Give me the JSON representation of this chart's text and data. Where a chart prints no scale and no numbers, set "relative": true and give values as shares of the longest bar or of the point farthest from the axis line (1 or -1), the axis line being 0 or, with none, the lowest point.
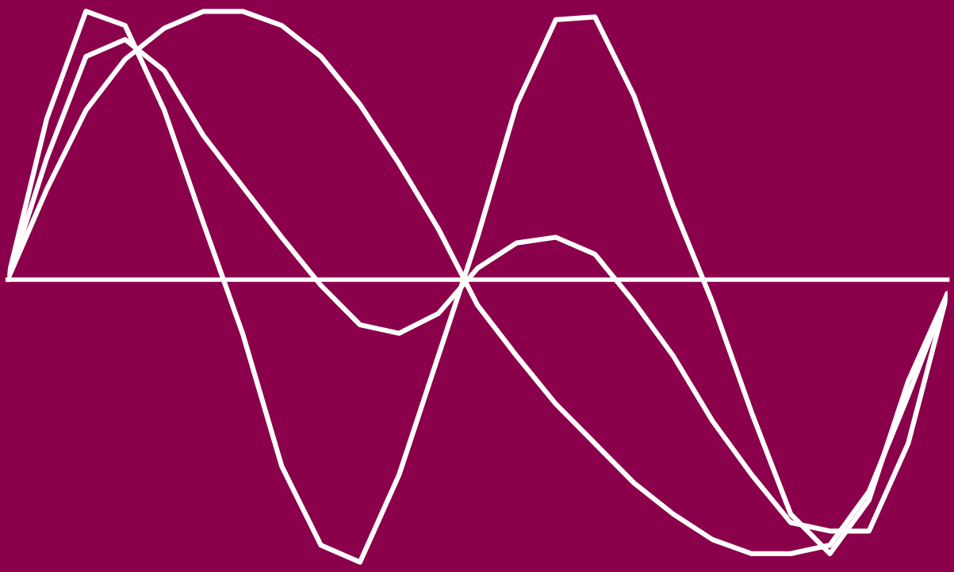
{
  "chart_data": {
    "type": "line",
    "relative": true,
    "grid": false,
    "marker": "none",
    "line_style": "solid",
    "categories": [
      null,
      null,
      null,
      null,
      null,
      null,
      null,
      null,
      null,
      null,
      null,
      null,
      null,
      null,
      null,
      null,
      null,
      null,
      null,
      null,
      null,
      null,
      null,
      null,
      null
    ],
    "series": [
      {
        "color": "#ffffff",
        "values": [
          0,
          0.32,
          0.6,
          0.78,
          0.89,
          0.95,
          0.95,
          0.9,
          0.79,
          0.62,
          0.41,
          0.18,
          -0.09,
          -0.27,
          -0.44,
          -0.58,
          -0.72,
          -0.83,
          -0.92,
          -0.97,
          -0.97,
          -0.94,
          -0.75,
          -0.41,
          -0.05
        ]
      },
      {
        "color": "#ffffff",
        "values": [
          0,
          0.57,
          0.95,
          0.9,
          0.6,
          0.2,
          -0.19,
          -0.66,
          -0.94,
          -1,
          -0.69,
          -0.27,
          0.15,
          0.62,
          0.92,
          0.93,
          0.65,
          0.26,
          -0.08,
          -0.47,
          -0.83,
          -0.97,
          -0.78,
          -0.36,
          -0.05
        ]
      },
      {
        "color": "#ffffff",
        "values": [
          0,
          0.43,
          0.79,
          0.85,
          0.74,
          0.51,
          0.33,
          0.15,
          -0.02,
          -0.16,
          -0.19,
          -0.12,
          0.04,
          0.13,
          0.15,
          0.09,
          -0.08,
          -0.27,
          -0.5,
          -0.69,
          -0.86,
          -0.89,
          -0.89,
          -0.58,
          -0.05
        ]
      }
    ]
  }
}
